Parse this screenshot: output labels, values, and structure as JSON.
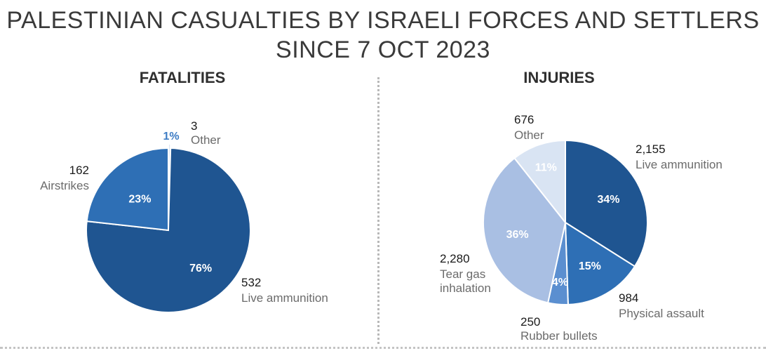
{
  "title_line1": "PALESTINIAN CASUALTIES BY ISRAELI FORCES AND SETTLERS",
  "title_line2": "SINCE 7 OCT 2023",
  "chart_data": [
    {
      "type": "pie",
      "title": "FATALITIES",
      "slices": [
        {
          "name": "Other",
          "value": 3,
          "value_label": "3",
          "percent_label": "1%",
          "color": "#d9e4f3"
        },
        {
          "name": "Live ammunition",
          "value": 532,
          "value_label": "532",
          "percent_label": "76%",
          "color": "#1f5591"
        },
        {
          "name": "Airstrikes",
          "value": 162,
          "value_label": "162",
          "percent_label": "23%",
          "color": "#2e6fb5"
        }
      ]
    },
    {
      "type": "pie",
      "title": "INJURIES",
      "slices": [
        {
          "name": "Live ammunition",
          "value": 2155,
          "value_label": "2,155",
          "percent_label": "34%",
          "color": "#1f5591"
        },
        {
          "name": "Physical assault",
          "value": 984,
          "value_label": "984",
          "percent_label": "15%",
          "color": "#2e6fb5"
        },
        {
          "name": "Rubber bullets",
          "value": 250,
          "value_label": "250",
          "percent_label": "4%",
          "color": "#5b8fd0"
        },
        {
          "name": "Tear gas inhalation",
          "value": 2280,
          "value_label": "2,280",
          "percent_label": "36%",
          "color": "#a9bfe3"
        },
        {
          "name": "Other",
          "value": 676,
          "value_label": "676",
          "percent_label": "11%",
          "color": "#d9e4f3"
        }
      ]
    }
  ]
}
